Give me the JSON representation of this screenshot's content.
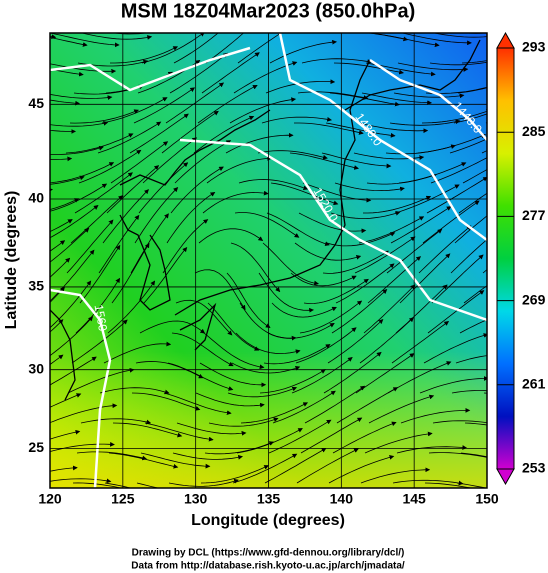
{
  "chart_data": {
    "type": "map",
    "title": "MSM 18Z04Mar2023 (850.0hPa)",
    "x_label": "Longitude (degrees)",
    "y_label": "Latitude  (degrees)",
    "xlim": [
      120,
      150
    ],
    "ylim": [
      22.4,
      48.5
    ],
    "xticks": [
      120,
      125,
      130,
      135,
      140,
      145,
      150
    ],
    "yticks": [
      25,
      30,
      35,
      40,
      45
    ],
    "grid": true,
    "colorbar": {
      "lim": [
        253,
        293
      ],
      "ticks": [
        253,
        261,
        269,
        277,
        285,
        293
      ],
      "colors": [
        "#d000d0",
        "#0010c0",
        "#0070ff",
        "#00d8e8",
        "#00d040",
        "#40e000",
        "#d8f000",
        "#ffc000",
        "#ff3000"
      ]
    },
    "contour_labels": [
      "1480.0",
      "1440.0",
      "1520.0",
      "1560"
    ],
    "credits": [
      "Drawing by DCL (https://www.gfd-dennou.org/library/dcl/)",
      "Data from http://database.rish.kyoto-u.ac.jp/arch/jmadata/"
    ]
  }
}
